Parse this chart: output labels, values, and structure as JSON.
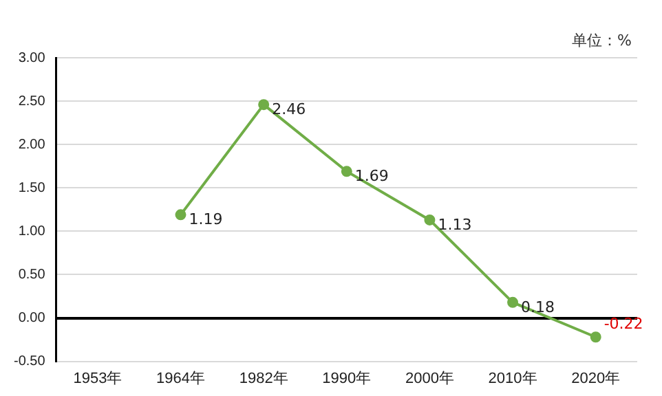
{
  "chart_data": {
    "type": "line",
    "categories": [
      "1953年",
      "1964年",
      "1982年",
      "1990年",
      "2000年",
      "2010年",
      "2020年"
    ],
    "series": [
      {
        "color": "#70ad47",
        "values": [
          null,
          1.19,
          2.46,
          1.69,
          1.13,
          0.18,
          -0.22
        ],
        "value_labels": [
          null,
          "1.19",
          "2.46",
          "1.69",
          "1.13",
          "0.18",
          "-0.22"
        ]
      }
    ],
    "ylim": [
      -0.5,
      3
    ],
    "yticks": [
      {
        "value": -0.5,
        "label": "-0.50"
      },
      {
        "value": 0,
        "label": "0.00"
      },
      {
        "value": 0.5,
        "label": "0.50"
      },
      {
        "value": 1,
        "label": "1.00"
      },
      {
        "value": 1.5,
        "label": "1.50"
      },
      {
        "value": 2,
        "label": "2.00"
      },
      {
        "value": 2.5,
        "label": "2.50"
      },
      {
        "value": 3,
        "label": "3.00"
      }
    ],
    "grid": "y",
    "marker": "circle",
    "line_style": "solid",
    "legend": false,
    "annotations": [
      "单位：%"
    ]
  }
}
